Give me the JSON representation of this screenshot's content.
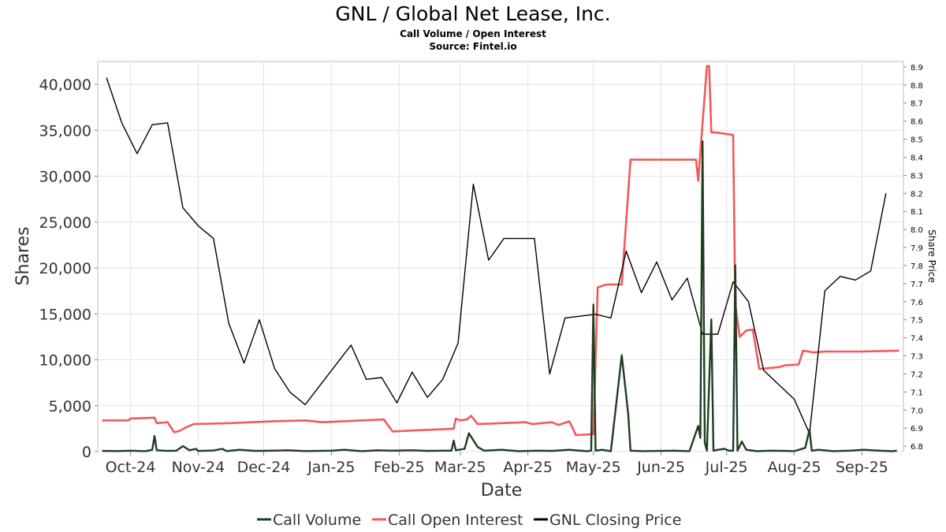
{
  "chart_data": {
    "type": "line",
    "title": "GNL / Global Net Lease, Inc.",
    "subtitle": "Call Volume / Open Interest",
    "source": "Source: Fintel.io",
    "xlabel": "Date",
    "ylabel": "Shares",
    "ylabel_right": "Share Price",
    "x_range": [
      "2024-09-16",
      "2025-09-20"
    ],
    "ylim": [
      0,
      42500
    ],
    "ylim_right": [
      6.77,
      8.93
    ],
    "x_ticks": [
      {
        "label": "Oct-24",
        "date": "2024-10-01"
      },
      {
        "label": "Nov-24",
        "date": "2024-11-01"
      },
      {
        "label": "Dec-24",
        "date": "2024-12-01"
      },
      {
        "label": "Jan-25",
        "date": "2025-01-01"
      },
      {
        "label": "Feb-25",
        "date": "2025-02-01"
      },
      {
        "label": "Mar-25",
        "date": "2025-03-01"
      },
      {
        "label": "Apr-25",
        "date": "2025-04-01"
      },
      {
        "label": "May-25",
        "date": "2025-05-01"
      },
      {
        "label": "Jun-25",
        "date": "2025-06-01"
      },
      {
        "label": "Jul-25",
        "date": "2025-07-01"
      },
      {
        "label": "Aug-25",
        "date": "2025-08-01"
      },
      {
        "label": "Sep-25",
        "date": "2025-09-01"
      }
    ],
    "y_ticks": [
      {
        "label": "0",
        "value": 0
      },
      {
        "label": "5,000",
        "value": 5000
      },
      {
        "label": "10,000",
        "value": 10000
      },
      {
        "label": "15,000",
        "value": 15000
      },
      {
        "label": "20,000",
        "value": 20000
      },
      {
        "label": "25,000",
        "value": 25000
      },
      {
        "label": "30,000",
        "value": 30000
      },
      {
        "label": "35,000",
        "value": 35000
      },
      {
        "label": "40,000",
        "value": 40000
      }
    ],
    "y_ticks_right": [
      {
        "label": "6.8",
        "value": 6.8
      },
      {
        "label": "6.9",
        "value": 6.9
      },
      {
        "label": "7.0",
        "value": 7.0
      },
      {
        "label": "7.1",
        "value": 7.1
      },
      {
        "label": "7.2",
        "value": 7.2
      },
      {
        "label": "7.3",
        "value": 7.3
      },
      {
        "label": "7.4",
        "value": 7.4
      },
      {
        "label": "7.5",
        "value": 7.5
      },
      {
        "label": "7.6",
        "value": 7.6
      },
      {
        "label": "7.7",
        "value": 7.7
      },
      {
        "label": "7.8",
        "value": 7.8
      },
      {
        "label": "7.9",
        "value": 7.9
      },
      {
        "label": "8.0",
        "value": 8.0
      },
      {
        "label": "8.1",
        "value": 8.1
      },
      {
        "label": "8.2",
        "value": 8.2
      },
      {
        "label": "8.3",
        "value": 8.3
      },
      {
        "label": "8.4",
        "value": 8.4
      },
      {
        "label": "8.5",
        "value": 8.5
      },
      {
        "label": "8.6",
        "value": 8.6
      },
      {
        "label": "8.7",
        "value": 8.7
      },
      {
        "label": "8.8",
        "value": 8.8
      },
      {
        "label": "8.9",
        "value": 8.9
      }
    ],
    "grid": true,
    "legend_position": "bottom",
    "series": [
      {
        "name": "Call Volume",
        "axis": "left",
        "color": "#1f3d1f",
        "points": [
          [
            "2024-09-18",
            80
          ],
          [
            "2024-09-25",
            60
          ],
          [
            "2024-10-01",
            100
          ],
          [
            "2024-10-08",
            50
          ],
          [
            "2024-10-11",
            200
          ],
          [
            "2024-10-12",
            1700
          ],
          [
            "2024-10-13",
            150
          ],
          [
            "2024-10-18",
            80
          ],
          [
            "2024-10-22",
            100
          ],
          [
            "2024-10-25",
            600
          ],
          [
            "2024-10-28",
            150
          ],
          [
            "2024-10-31",
            300
          ],
          [
            "2024-11-01",
            80
          ],
          [
            "2024-11-08",
            120
          ],
          [
            "2024-11-12",
            300
          ],
          [
            "2024-11-14",
            60
          ],
          [
            "2024-11-20",
            200
          ],
          [
            "2024-11-27",
            80
          ],
          [
            "2024-12-05",
            100
          ],
          [
            "2024-12-12",
            150
          ],
          [
            "2024-12-20",
            60
          ],
          [
            "2025-01-01",
            100
          ],
          [
            "2025-01-07",
            200
          ],
          [
            "2025-01-15",
            50
          ],
          [
            "2025-01-22",
            150
          ],
          [
            "2025-01-29",
            100
          ],
          [
            "2025-02-07",
            150
          ],
          [
            "2025-02-14",
            80
          ],
          [
            "2025-02-21",
            100
          ],
          [
            "2025-02-25",
            100
          ],
          [
            "2025-02-26",
            1200
          ],
          [
            "2025-02-27",
            150
          ],
          [
            "2025-03-03",
            300
          ],
          [
            "2025-03-05",
            2000
          ],
          [
            "2025-03-09",
            500
          ],
          [
            "2025-03-12",
            100
          ],
          [
            "2025-03-20",
            200
          ],
          [
            "2025-03-28",
            50
          ],
          [
            "2025-04-05",
            100
          ],
          [
            "2025-04-12",
            80
          ],
          [
            "2025-04-20",
            200
          ],
          [
            "2025-04-25",
            100
          ],
          [
            "2025-04-28",
            50
          ],
          [
            "2025-04-30",
            100
          ],
          [
            "2025-05-01",
            16000
          ],
          [
            "2025-05-02",
            100
          ],
          [
            "2025-05-05",
            200
          ],
          [
            "2025-05-09",
            50
          ],
          [
            "2025-05-14",
            10500
          ],
          [
            "2025-05-17",
            4000
          ],
          [
            "2025-05-18",
            100
          ],
          [
            "2025-05-24",
            50
          ],
          [
            "2025-05-31",
            80
          ],
          [
            "2025-06-07",
            100
          ],
          [
            "2025-06-14",
            50
          ],
          [
            "2025-06-18",
            2800
          ],
          [
            "2025-06-19",
            1500
          ],
          [
            "2025-06-20",
            33800
          ],
          [
            "2025-06-21",
            1000
          ],
          [
            "2025-06-22",
            100
          ],
          [
            "2025-06-24",
            14400
          ],
          [
            "2025-06-25",
            100
          ],
          [
            "2025-06-27",
            200
          ],
          [
            "2025-06-30",
            300
          ],
          [
            "2025-07-02",
            100
          ],
          [
            "2025-07-04",
            100
          ],
          [
            "2025-07-05",
            20300
          ],
          [
            "2025-07-06",
            100
          ],
          [
            "2025-07-08",
            1100
          ],
          [
            "2025-07-10",
            200
          ],
          [
            "2025-07-15",
            50
          ],
          [
            "2025-07-21",
            100
          ],
          [
            "2025-07-28",
            80
          ],
          [
            "2025-08-01",
            50
          ],
          [
            "2025-08-06",
            400
          ],
          [
            "2025-08-08",
            2400
          ],
          [
            "2025-08-09",
            100
          ],
          [
            "2025-08-12",
            200
          ],
          [
            "2025-08-19",
            50
          ],
          [
            "2025-08-26",
            100
          ],
          [
            "2025-09-02",
            200
          ],
          [
            "2025-09-09",
            100
          ],
          [
            "2025-09-15",
            50
          ],
          [
            "2025-09-17",
            100
          ]
        ]
      },
      {
        "name": "Call Open Interest",
        "axis": "left",
        "color": "#f05a5a",
        "points": [
          [
            "2024-09-18",
            3400
          ],
          [
            "2024-09-30",
            3400
          ],
          [
            "2024-10-01",
            3600
          ],
          [
            "2024-10-12",
            3700
          ],
          [
            "2024-10-13",
            3100
          ],
          [
            "2024-10-18",
            3200
          ],
          [
            "2024-10-21",
            2100
          ],
          [
            "2024-10-24",
            2300
          ],
          [
            "2024-10-26",
            2600
          ],
          [
            "2024-10-30",
            3000
          ],
          [
            "2024-11-15",
            3100
          ],
          [
            "2024-12-05",
            3300
          ],
          [
            "2024-12-20",
            3400
          ],
          [
            "2024-12-28",
            3200
          ],
          [
            "2025-01-25",
            3500
          ],
          [
            "2025-01-29",
            2200
          ],
          [
            "2025-02-26",
            2500
          ],
          [
            "2025-02-27",
            3600
          ],
          [
            "2025-03-01",
            3400
          ],
          [
            "2025-03-04",
            3500
          ],
          [
            "2025-03-06",
            3900
          ],
          [
            "2025-03-09",
            3000
          ],
          [
            "2025-03-31",
            3200
          ],
          [
            "2025-04-03",
            3000
          ],
          [
            "2025-04-12",
            3200
          ],
          [
            "2025-04-15",
            2900
          ],
          [
            "2025-04-20",
            3300
          ],
          [
            "2025-04-23",
            1800
          ],
          [
            "2025-05-01",
            1900
          ],
          [
            "2025-05-03",
            17900
          ],
          [
            "2025-05-07",
            18200
          ],
          [
            "2025-05-14",
            18200
          ],
          [
            "2025-05-18",
            31800
          ],
          [
            "2025-06-17",
            31800
          ],
          [
            "2025-06-18",
            29500
          ],
          [
            "2025-06-22",
            42000
          ],
          [
            "2025-06-23",
            42000
          ],
          [
            "2025-06-24",
            34800
          ],
          [
            "2025-06-28",
            34700
          ],
          [
            "2025-07-04",
            34500
          ],
          [
            "2025-07-05",
            16000
          ],
          [
            "2025-07-07",
            12500
          ],
          [
            "2025-07-10",
            13200
          ],
          [
            "2025-07-13",
            13300
          ],
          [
            "2025-07-16",
            9000
          ],
          [
            "2025-07-25",
            9200
          ],
          [
            "2025-07-28",
            9400
          ],
          [
            "2025-08-03",
            9500
          ],
          [
            "2025-08-05",
            11000
          ],
          [
            "2025-08-10",
            10800
          ],
          [
            "2025-08-15",
            10900
          ],
          [
            "2025-09-01",
            10900
          ],
          [
            "2025-09-18",
            11000
          ]
        ]
      },
      {
        "name": "GNL Closing Price",
        "axis": "right",
        "color": "#000000",
        "points": [
          [
            "2024-09-20",
            8.84
          ],
          [
            "2024-09-27",
            8.59
          ],
          [
            "2024-10-04",
            8.42
          ],
          [
            "2024-10-11",
            8.58
          ],
          [
            "2024-10-18",
            8.59
          ],
          [
            "2024-10-25",
            8.12
          ],
          [
            "2024-11-01",
            8.02
          ],
          [
            "2024-11-08",
            7.95
          ],
          [
            "2024-11-15",
            7.48
          ],
          [
            "2024-11-22",
            7.26
          ],
          [
            "2024-11-29",
            7.5
          ],
          [
            "2024-12-06",
            7.23
          ],
          [
            "2024-12-13",
            7.1
          ],
          [
            "2024-12-20",
            7.03
          ],
          [
            "2025-01-10",
            7.36
          ],
          [
            "2025-01-17",
            7.17
          ],
          [
            "2025-01-24",
            7.18
          ],
          [
            "2025-01-31",
            7.04
          ],
          [
            "2025-02-07",
            7.21
          ],
          [
            "2025-02-14",
            7.07
          ],
          [
            "2025-02-21",
            7.17
          ],
          [
            "2025-02-28",
            7.37
          ],
          [
            "2025-03-07",
            8.25
          ],
          [
            "2025-03-14",
            7.83
          ],
          [
            "2025-03-21",
            7.95
          ],
          [
            "2025-04-04",
            7.95
          ],
          [
            "2025-04-11",
            7.2
          ],
          [
            "2025-04-18",
            7.51
          ],
          [
            "2025-05-02",
            7.53
          ],
          [
            "2025-05-09",
            7.51
          ],
          [
            "2025-05-16",
            7.88
          ],
          [
            "2025-05-23",
            7.65
          ],
          [
            "2025-05-30",
            7.82
          ],
          [
            "2025-06-06",
            7.61
          ],
          [
            "2025-06-13",
            7.73
          ],
          [
            "2025-06-20",
            7.42
          ],
          [
            "2025-06-27",
            7.42
          ],
          [
            "2025-07-04",
            7.71
          ],
          [
            "2025-07-11",
            7.6
          ],
          [
            "2025-07-18",
            7.22
          ],
          [
            "2025-07-25",
            7.14
          ],
          [
            "2025-08-01",
            7.06
          ],
          [
            "2025-08-08",
            6.87
          ],
          [
            "2025-08-15",
            7.66
          ],
          [
            "2025-08-22",
            7.74
          ],
          [
            "2025-08-29",
            7.72
          ],
          [
            "2025-09-05",
            7.77
          ],
          [
            "2025-09-12",
            8.2
          ]
        ]
      }
    ]
  }
}
